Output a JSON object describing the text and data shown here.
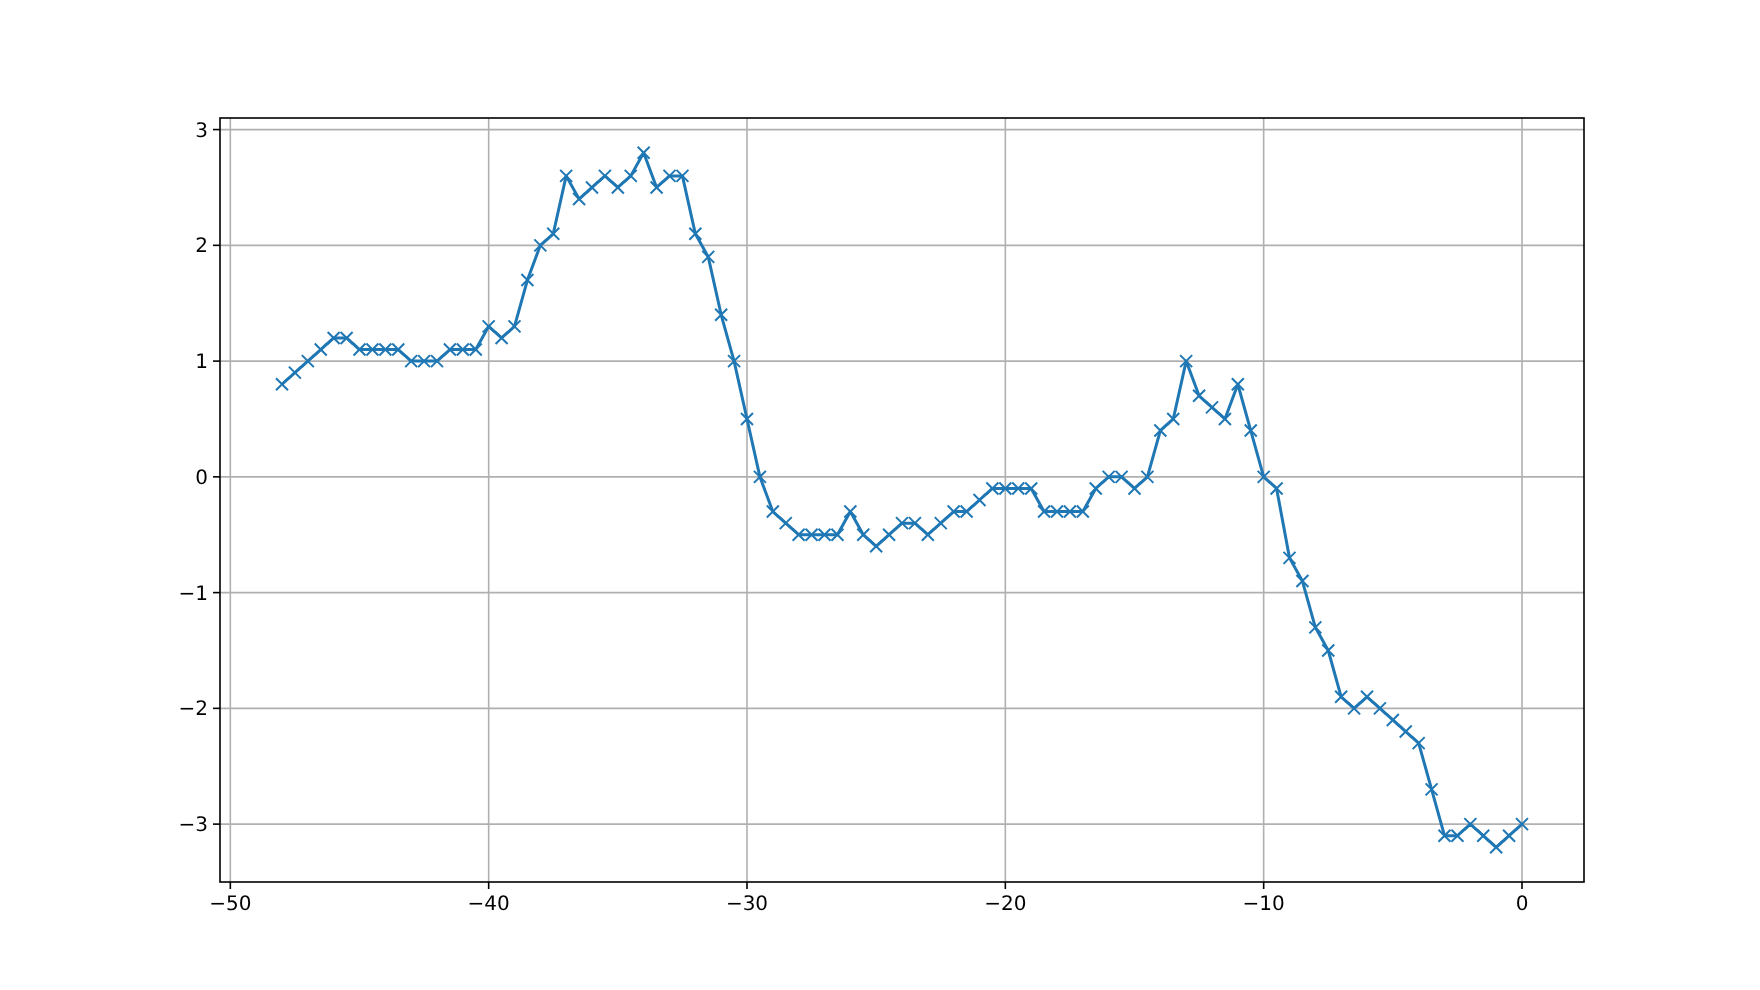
{
  "chart_data": {
    "type": "line",
    "x": [
      -48,
      -47.5,
      -47,
      -46.5,
      -46,
      -45.5,
      -45,
      -44.5,
      -44,
      -43.5,
      -43,
      -42.5,
      -42,
      -41.5,
      -41,
      -40.5,
      -40,
      -39.5,
      -39,
      -38.5,
      -38,
      -37.5,
      -37,
      -36.5,
      -36,
      -35.5,
      -35,
      -34.5,
      -34,
      -33.5,
      -33,
      -32.5,
      -32,
      -31.5,
      -31,
      -30.5,
      -30,
      -29.5,
      -29,
      -28.5,
      -28,
      -27.5,
      -27,
      -26.5,
      -26,
      -25.5,
      -25,
      -24.5,
      -24,
      -23.5,
      -23,
      -22.5,
      -22,
      -21.5,
      -21,
      -20.5,
      -20,
      -19.5,
      -19,
      -18.5,
      -18,
      -17.5,
      -17,
      -16.5,
      -16,
      -15.5,
      -15,
      -14.5,
      -14,
      -13.5,
      -13,
      -12.5,
      -12,
      -11.5,
      -11,
      -10.5,
      -10,
      -9.5,
      -9,
      -8.5,
      -8,
      -7.5,
      -7,
      -6.5,
      -6,
      -5.5,
      -5,
      -4.5,
      -4,
      -3.5,
      -3,
      -2.5,
      -2,
      -1.5,
      -1,
      -0.5,
      0
    ],
    "series": [
      {
        "color": "#1f77b4",
        "values": [
          0.8,
          0.9,
          1.0,
          1.1,
          1.2,
          1.2,
          1.1,
          1.1,
          1.1,
          1.1,
          1.0,
          1.0,
          1.0,
          1.1,
          1.1,
          1.1,
          1.3,
          1.2,
          1.3,
          1.7,
          2.0,
          2.1,
          2.6,
          2.4,
          2.5,
          2.6,
          2.5,
          2.6,
          2.8,
          2.5,
          2.6,
          2.6,
          2.1,
          1.9,
          1.4,
          1.0,
          0.5,
          0.0,
          -0.3,
          -0.4,
          -0.5,
          -0.5,
          -0.5,
          -0.5,
          -0.3,
          -0.5,
          -0.6,
          -0.5,
          -0.4,
          -0.4,
          -0.5,
          -0.4,
          -0.3,
          -0.3,
          -0.2,
          -0.1,
          -0.1,
          -0.1,
          -0.1,
          -0.3,
          -0.3,
          -0.3,
          -0.3,
          -0.1,
          0.0,
          0.0,
          -0.1,
          0.0,
          0.4,
          0.5,
          1.0,
          0.7,
          0.6,
          0.5,
          0.8,
          0.4,
          0.0,
          -0.1,
          -0.7,
          -0.9,
          -1.3,
          -1.5,
          -1.9,
          -2.0,
          -1.9,
          -2.0,
          -2.1,
          -2.2,
          -2.3,
          -2.7,
          -3.1,
          -3.1,
          -3.0,
          -3.1,
          -3.2,
          -3.1,
          -3.0
        ]
      }
    ],
    "xlim": [
      -50.4,
      2.4
    ],
    "xticks": [
      -50,
      -40,
      -30,
      -20,
      -10,
      0
    ],
    "ylim": [
      -3.5,
      3.1
    ],
    "yticks": [
      -3,
      -2,
      -1,
      0,
      1,
      2,
      3
    ],
    "grid": true,
    "marker": "cross",
    "line_style": "solid"
  }
}
